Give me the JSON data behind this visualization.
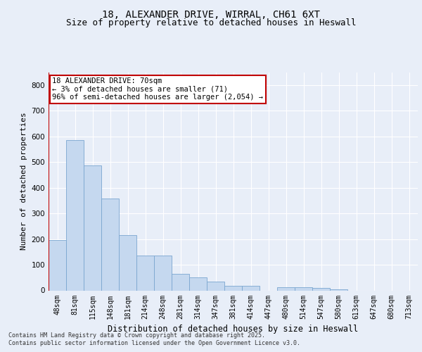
{
  "title_line1": "18, ALEXANDER DRIVE, WIRRAL, CH61 6XT",
  "title_line2": "Size of property relative to detached houses in Heswall",
  "xlabel": "Distribution of detached houses by size in Heswall",
  "ylabel": "Number of detached properties",
  "categories": [
    "48sqm",
    "81sqm",
    "115sqm",
    "148sqm",
    "181sqm",
    "214sqm",
    "248sqm",
    "281sqm",
    "314sqm",
    "347sqm",
    "381sqm",
    "414sqm",
    "447sqm",
    "480sqm",
    "514sqm",
    "547sqm",
    "580sqm",
    "613sqm",
    "647sqm",
    "680sqm",
    "713sqm"
  ],
  "values": [
    195,
    585,
    488,
    358,
    215,
    135,
    135,
    65,
    50,
    35,
    18,
    18,
    0,
    12,
    12,
    10,
    5,
    0,
    0,
    0,
    0
  ],
  "bar_color": "#c5d8ef",
  "bar_edge_color": "#7aa6d0",
  "annotation_line1": "18 ALEXANDER DRIVE: 70sqm",
  "annotation_line2": "← 3% of detached houses are smaller (71)",
  "annotation_line3": "96% of semi-detached houses are larger (2,054) →",
  "annotation_box_edge_color": "#c00000",
  "red_line_x": -0.5,
  "ylim": [
    0,
    850
  ],
  "yticks": [
    0,
    100,
    200,
    300,
    400,
    500,
    600,
    700,
    800
  ],
  "footer_line1": "Contains HM Land Registry data © Crown copyright and database right 2025.",
  "footer_line2": "Contains public sector information licensed under the Open Government Licence v3.0.",
  "bg_color": "#e8eef8",
  "plot_bg_color": "#e8eef8",
  "grid_color": "#ffffff",
  "title_fontsize": 10,
  "subtitle_fontsize": 9,
  "ylabel_fontsize": 8,
  "xlabel_fontsize": 8.5,
  "tick_fontsize": 7,
  "footer_fontsize": 6,
  "ann_fontsize": 7.5
}
